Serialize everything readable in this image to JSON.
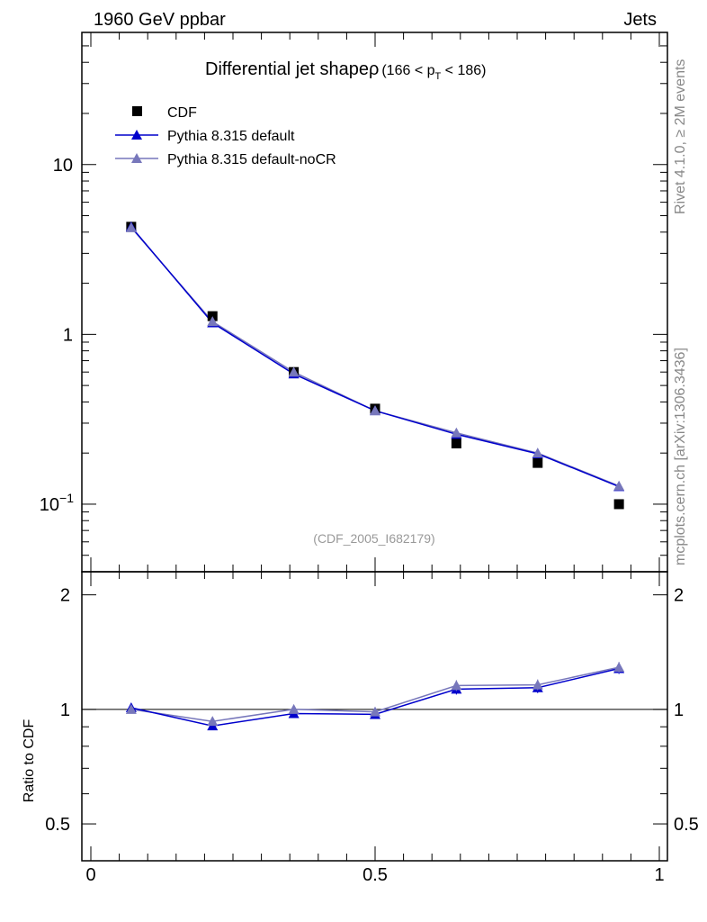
{
  "header": {
    "left": "1960 GeV ppbar",
    "right": "Jets"
  },
  "side_labels": {
    "rivet": "Rivet 4.1.0, ≥ 2M events",
    "mcplots": "mcplots.cern.ch [arXiv:1306.3436]"
  },
  "chart_data": [
    {
      "type": "scatter",
      "title_main": "Differential jet shapeρ",
      "title_sub_open": "(166 < p",
      "title_sub_index": "T",
      "title_sub_close": " < 186)",
      "watermark": "(CDF_2005_I682179)",
      "yscale": "log",
      "ylim": [
        0.04,
        60
      ],
      "xlim": [
        0,
        1
      ],
      "y_tick_labels": [
        {
          "value": 10,
          "base": "10",
          "exp": ""
        },
        {
          "value": 1,
          "base": "1",
          "exp": ""
        },
        {
          "value": 0.1,
          "base": "10",
          "exp": "−1"
        }
      ],
      "legend": [
        {
          "label": "CDF",
          "marker": "square",
          "color": "#000000"
        },
        {
          "label": "Pythia 8.315 default",
          "marker": "triangle",
          "color": "#0000cc"
        },
        {
          "label": "Pythia 8.315 default-noCR",
          "marker": "triangle",
          "color": "#7777bb"
        }
      ],
      "x": [
        0.071,
        0.214,
        0.357,
        0.5,
        0.643,
        0.786,
        0.929
      ],
      "series": [
        {
          "name": "CDF",
          "values": [
            4.3,
            1.28,
            0.6,
            0.365,
            0.228,
            0.175,
            0.1
          ]
        },
        {
          "name": "Pythia 8.315 default",
          "values": [
            4.3,
            1.17,
            0.585,
            0.355,
            0.258,
            0.198,
            0.127
          ]
        },
        {
          "name": "Pythia 8.315 default-noCR",
          "values": [
            4.25,
            1.19,
            0.6,
            0.355,
            0.263,
            0.2,
            0.128
          ]
        }
      ]
    },
    {
      "type": "line",
      "ylabel": "Ratio to CDF",
      "yscale": "log",
      "ylim": [
        0.4,
        2.3
      ],
      "xlim": [
        0,
        1
      ],
      "reference": 1,
      "y_tick_labels": [
        {
          "value": 2,
          "label": "2"
        },
        {
          "value": 1,
          "label": "1"
        },
        {
          "value": 0.5,
          "label": "0.5"
        }
      ],
      "x_tick_labels": [
        {
          "value": 0,
          "label": "0"
        },
        {
          "value": 0.5,
          "label": "0.5"
        },
        {
          "value": 1,
          "label": "1"
        }
      ],
      "x": [
        0.071,
        0.214,
        0.357,
        0.5,
        0.643,
        0.786,
        0.929
      ],
      "series": [
        {
          "name": "Pythia 8.315 default",
          "values": [
            1.01,
            0.905,
            0.975,
            0.97,
            1.13,
            1.14,
            1.28
          ]
        },
        {
          "name": "Pythia 8.315 default-noCR",
          "values": [
            1.0,
            0.93,
            1.0,
            0.985,
            1.155,
            1.16,
            1.29
          ]
        }
      ]
    }
  ]
}
